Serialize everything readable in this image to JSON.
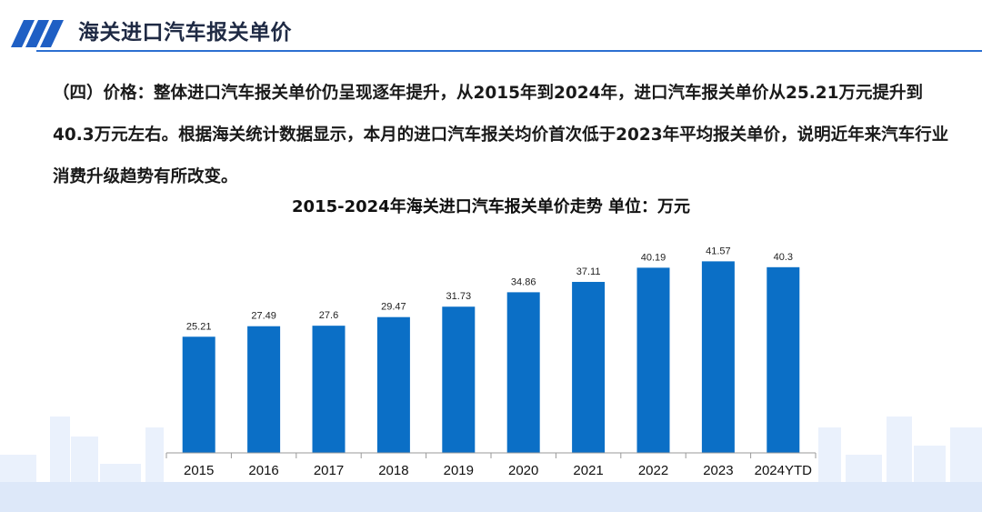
{
  "header": {
    "title": "海关进口汽车报关单价"
  },
  "paragraph": {
    "text": "（四）价格：整体进口汽车报关单价仍呈现逐年提升，从2015年到2024年，进口汽车报关单价从25.21万元提升到40.3万元左右。根据海关统计数据显示，本月的进口汽车报关均价首次低于2023年平均报关单价，说明近年来汽车行业消费升级趋势有所改变。"
  },
  "colors": {
    "bar": "#0b6fc6",
    "accent": "#2c6fd1",
    "deco": "#e6eefb"
  },
  "chart_data": {
    "type": "bar",
    "title": "2015-2024年海关进口汽车报关单价走势  单位：万元",
    "categories": [
      "2015",
      "2016",
      "2017",
      "2018",
      "2019",
      "2020",
      "2021",
      "2022",
      "2023",
      "2024YTD"
    ],
    "values": [
      25.21,
      27.49,
      27.6,
      29.47,
      31.73,
      34.86,
      37.11,
      40.19,
      41.57,
      40.3
    ],
    "value_labels": [
      "25.21",
      "27.49",
      "27.6",
      "29.47",
      "31.73",
      "34.86",
      "37.11",
      "40.19",
      "41.57",
      "40.3"
    ],
    "ylim": [
      0,
      45
    ],
    "grid": false,
    "legend": "none"
  }
}
